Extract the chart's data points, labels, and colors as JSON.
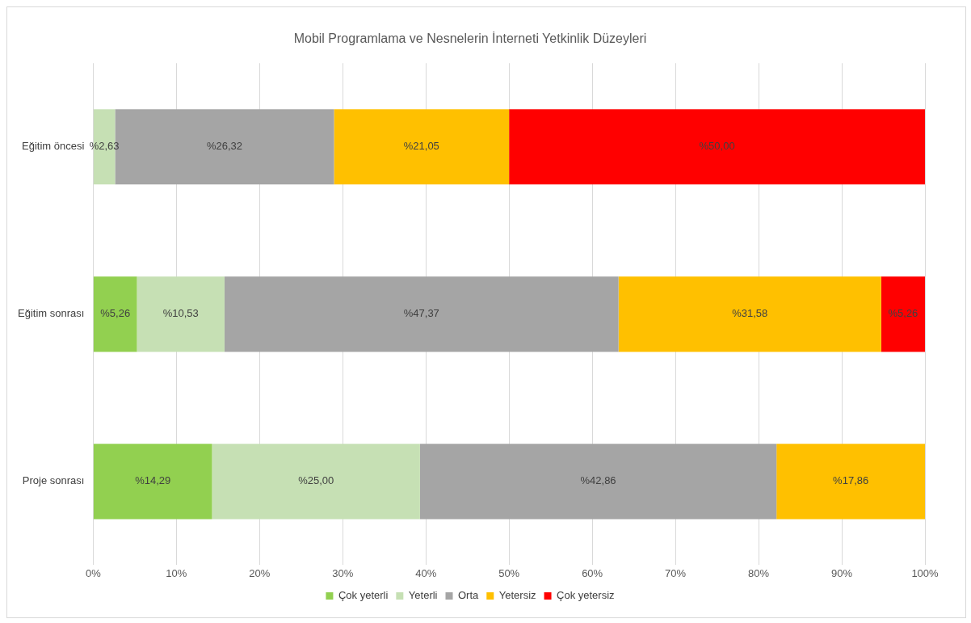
{
  "chart_data": {
    "type": "bar",
    "orientation": "horizontal",
    "stacked": true,
    "title": "Mobil Programlama ve Nesnelerin İnterneti Yetkinlik Düzeyleri",
    "categories": [
      "Eğitim öncesi",
      "Eğitim sonrası",
      "Proje sonrası"
    ],
    "series": [
      {
        "name": "Çok yeterli",
        "color": "#92d050",
        "values": [
          null,
          5.26,
          14.29
        ],
        "value_labels": [
          null,
          "%5,26",
          "%14,29"
        ]
      },
      {
        "name": "Yeterli",
        "color": "#c6e0b4",
        "values": [
          2.63,
          10.53,
          25.0
        ],
        "value_labels": [
          "%2,63",
          "%10,53",
          "%25,00"
        ]
      },
      {
        "name": "Orta",
        "color": "#a5a5a5",
        "values": [
          26.32,
          47.37,
          42.86
        ],
        "value_labels": [
          "%26,32",
          "%47,37",
          "%42,86"
        ]
      },
      {
        "name": "Yetersiz",
        "color": "#ffc000",
        "values": [
          21.05,
          31.58,
          17.86
        ],
        "value_labels": [
          "%21,05",
          "%31,58",
          "%17,86"
        ]
      },
      {
        "name": "Çok yetersiz",
        "color": "#ff0000",
        "values": [
          50.0,
          5.26,
          null
        ],
        "value_labels": [
          "%50,00",
          "%5,26",
          null
        ]
      }
    ],
    "xlim": [
      0,
      100
    ],
    "xticks": [
      {
        "value": 0,
        "label": "0%"
      },
      {
        "value": 10,
        "label": "10%"
      },
      {
        "value": 20,
        "label": "20%"
      },
      {
        "value": 30,
        "label": "30%"
      },
      {
        "value": 40,
        "label": "40%"
      },
      {
        "value": 50,
        "label": "50%"
      },
      {
        "value": 60,
        "label": "60%"
      },
      {
        "value": 70,
        "label": "70%"
      },
      {
        "value": 80,
        "label": "80%"
      },
      {
        "value": 90,
        "label": "90%"
      },
      {
        "value": 100,
        "label": "100%"
      }
    ],
    "grid": "x",
    "legend": "bottom"
  }
}
